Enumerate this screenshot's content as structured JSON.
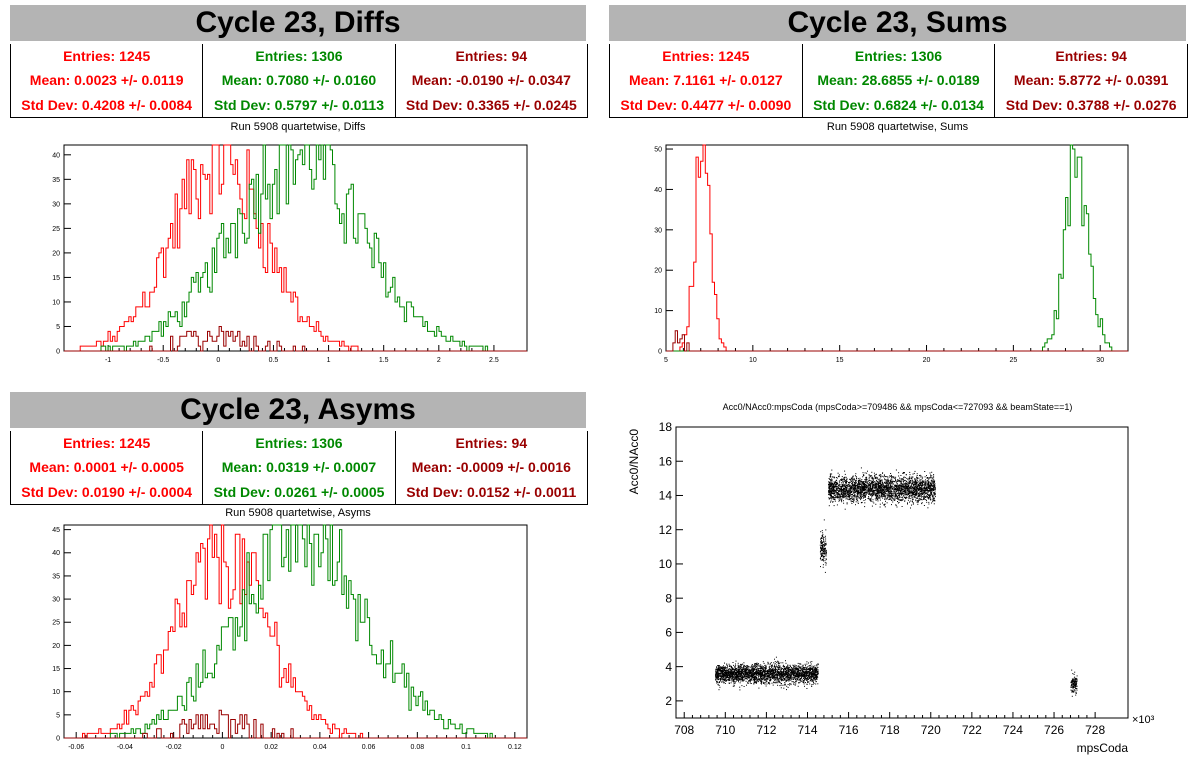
{
  "colors": {
    "red": "#ff0000",
    "green": "#008800",
    "darkred": "#990000",
    "title_bg": "#b4b4b4"
  },
  "panels": {
    "diffs": {
      "title": "Cycle 23, Diffs",
      "subtitle": "Run 5908 quartetwise, Diffs",
      "stats": [
        {
          "entries": "Entries: 1245",
          "mean": "Mean: 0.0023 +/- 0.0119",
          "std": "Std Dev: 0.4208 +/- 0.0084"
        },
        {
          "entries": "Entries: 1306",
          "mean": "Mean: 0.7080 +/- 0.0160",
          "std": "Std Dev: 0.5797 +/- 0.0113"
        },
        {
          "entries": "Entries: 94",
          "mean": "Mean: -0.0190 +/- 0.0347",
          "std": "Std Dev: 0.3365 +/- 0.0245"
        }
      ]
    },
    "sums": {
      "title": "Cycle 23, Sums",
      "subtitle": "Run 5908 quartetwise, Sums",
      "stats": [
        {
          "entries": "Entries: 1245",
          "mean": "Mean: 7.1161 +/- 0.0127",
          "std": "Std Dev: 0.4477 +/- 0.0090"
        },
        {
          "entries": "Entries: 1306",
          "mean": "Mean: 28.6855 +/- 0.0189",
          "std": "Std Dev: 0.6824 +/- 0.0134"
        },
        {
          "entries": "Entries: 94",
          "mean": "Mean: 5.8772 +/- 0.0391",
          "std": "Std Dev: 0.3788 +/- 0.0276"
        }
      ]
    },
    "asyms": {
      "title": "Cycle 23, Asyms",
      "subtitle": "Run 5908 quartetwise, Asyms",
      "stats": [
        {
          "entries": "Entries: 1245",
          "mean": "Mean: 0.0001 +/- 0.0005",
          "std": "Std Dev: 0.0190 +/- 0.0004"
        },
        {
          "entries": "Entries: 1306",
          "mean": "Mean: 0.0319 +/- 0.0007",
          "std": "Std Dev: 0.0261 +/- 0.0005"
        },
        {
          "entries": "Entries: 94",
          "mean": "Mean: -0.0009 +/- 0.0016",
          "std": "Std Dev: 0.0152 +/- 0.0011"
        }
      ]
    },
    "scatter": {
      "title": "Acc0/NAcc0:mpsCoda (mpsCoda>=709486 && mpsCoda<=727093 && beamState==1)"
    }
  },
  "chart_data": [
    {
      "type": "histogram",
      "title": "Run 5908 quartetwise, Diffs",
      "xlim": [
        -1.4,
        2.8
      ],
      "ylim": [
        0,
        42
      ],
      "xticks": [
        -1,
        -0.5,
        0,
        0.5,
        1,
        1.5,
        2,
        2.5
      ],
      "xticklabels": [
        "-1",
        "-0.5",
        "0",
        "0.5",
        "1",
        "1.5",
        "2",
        "2.5"
      ],
      "yticks": [
        0,
        5,
        10,
        15,
        20,
        25,
        30,
        35,
        40
      ],
      "series": [
        {
          "color": "red",
          "mean": 0.0023,
          "std": 0.4208,
          "peak": 39
        },
        {
          "color": "green",
          "mean": 0.708,
          "std": 0.5797,
          "peak": 41
        },
        {
          "color": "darkred",
          "mean": -0.019,
          "std": 0.3365,
          "peak": 5
        }
      ]
    },
    {
      "type": "histogram",
      "title": "Run 5908 quartetwise, Sums",
      "xlim": [
        5,
        31.6
      ],
      "ylim": [
        0,
        51
      ],
      "xticks": [
        5,
        10,
        15,
        20,
        25,
        30
      ],
      "xticklabels": [
        "5",
        "10",
        "15",
        "20",
        "25",
        "30"
      ],
      "yticks": [
        0,
        10,
        20,
        30,
        40,
        50
      ],
      "series": [
        {
          "color": "red",
          "mean": 7.1161,
          "std": 0.4477,
          "peak": 49
        },
        {
          "color": "green",
          "mean": 28.6855,
          "std": 0.6824,
          "peak": 48
        },
        {
          "color": "darkred",
          "mean": 5.8772,
          "std": 0.3788,
          "peak": 7
        }
      ]
    },
    {
      "type": "histogram",
      "title": "Run 5908 quartetwise, Asyms",
      "xlim": [
        -0.065,
        0.125
      ],
      "ylim": [
        0,
        46
      ],
      "xticks": [
        -0.06,
        -0.04,
        -0.02,
        0,
        0.02,
        0.04,
        0.06,
        0.08,
        0.1,
        0.12
      ],
      "xticklabels": [
        "-0.06",
        "-0.04",
        "-0.02",
        "0",
        "0.02",
        "0.04",
        "0.06",
        "0.08",
        "0.1",
        "0.12"
      ],
      "yticks": [
        0,
        5,
        10,
        15,
        20,
        25,
        30,
        35,
        40,
        45
      ],
      "series": [
        {
          "color": "red",
          "mean": 0.0001,
          "std": 0.019,
          "peak": 39
        },
        {
          "color": "green",
          "mean": 0.0319,
          "std": 0.0261,
          "peak": 44
        },
        {
          "color": "darkred",
          "mean": -0.0009,
          "std": 0.0152,
          "peak": 6
        }
      ]
    },
    {
      "type": "scatter",
      "title": "Acc0/NAcc0:mpsCoda (mpsCoda>=709486 && mpsCoda<=727093 && beamState==1)",
      "xlabel": "mpsCoda",
      "ylabel": "Acc0/NAcc0",
      "xexponent": "×10³",
      "xlim": [
        707.6,
        729.6
      ],
      "ylim": [
        1,
        18
      ],
      "xticks": [
        708,
        710,
        712,
        714,
        716,
        718,
        720,
        722,
        724,
        726,
        728
      ],
      "yticks": [
        2,
        4,
        6,
        8,
        10,
        12,
        14,
        16,
        18
      ],
      "clusters": [
        {
          "x_range": [
            709.5,
            714.5
          ],
          "y_center": 3.6,
          "y_spread": 0.55,
          "n": 2600
        },
        {
          "x_range": [
            714.6,
            714.9
          ],
          "y_center": 10.9,
          "y_spread": 0.9,
          "n": 160
        },
        {
          "x_range": [
            715.0,
            720.2
          ],
          "y_center": 14.4,
          "y_spread": 0.75,
          "n": 2800
        },
        {
          "x_range": [
            726.8,
            727.1
          ],
          "y_center": 3.0,
          "y_spread": 0.5,
          "n": 120
        }
      ]
    }
  ]
}
